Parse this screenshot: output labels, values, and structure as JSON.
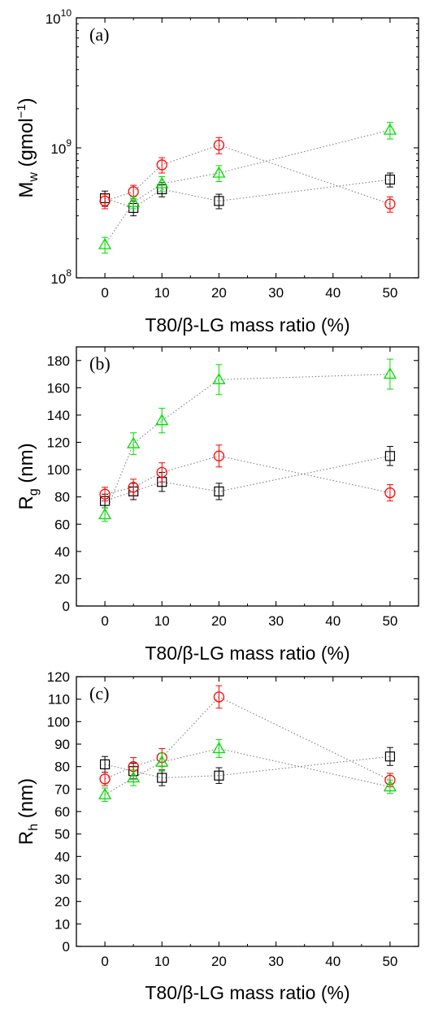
{
  "colors": {
    "square": "#000000",
    "circle": "#ff0000",
    "triangle": "#00dd00",
    "connector": "#808080"
  },
  "chart_data": [
    {
      "type": "scatter",
      "panel_label": "(a)",
      "xlabel": "T80/β-LG mass ratio (%)",
      "ylabel": {
        "main": "M",
        "sub": "w",
        "rest": " (gmol",
        "sup": "−1",
        "end": ")"
      },
      "yscale": "log",
      "xlim": [
        -5,
        55
      ],
      "ylim": [
        100000000,
        10000000000
      ],
      "xticks": [
        "0",
        "10",
        "20",
        "30",
        "40",
        "50"
      ],
      "yticks": [
        {
          "base": "10",
          "exp": "8",
          "value": 100000000
        },
        {
          "base": "10",
          "exp": "9",
          "value": 1000000000
        },
        {
          "base": "10",
          "exp": "10",
          "value": 10000000000
        }
      ],
      "x": [
        0,
        5,
        10,
        20,
        50
      ],
      "series": [
        {
          "marker": "square",
          "values": [
            410000000,
            345000000,
            480000000,
            390000000,
            570000000
          ],
          "errors": [
            55000000,
            45000000,
            60000000,
            50000000,
            70000000
          ]
        },
        {
          "marker": "circle",
          "values": [
            390000000,
            460000000,
            740000000,
            1050000000,
            370000000
          ],
          "errors": [
            50000000,
            55000000,
            100000000,
            150000000,
            50000000
          ]
        },
        {
          "marker": "triangle",
          "values": [
            180000000,
            380000000,
            530000000,
            640000000,
            1370000000
          ],
          "errors": [
            25000000,
            40000000,
            70000000,
            90000000,
            200000000
          ]
        }
      ]
    },
    {
      "type": "scatter",
      "panel_label": "(b)",
      "xlabel": "T80/β-LG mass ratio (%)",
      "ylabel": {
        "main": "R",
        "sub": "g",
        "rest": " (nm)"
      },
      "yscale": "linear",
      "xlim": [
        -5,
        55
      ],
      "ylim": [
        0,
        190
      ],
      "xticks": [
        "0",
        "10",
        "20",
        "30",
        "40",
        "50"
      ],
      "yticks": [
        "0",
        "20",
        "40",
        "60",
        "80",
        "100",
        "120",
        "140",
        "160",
        "180"
      ],
      "x": [
        0,
        5,
        10,
        20,
        50
      ],
      "series": [
        {
          "marker": "square",
          "values": [
            77,
            84,
            91,
            84,
            110
          ],
          "errors": [
            5,
            6,
            7,
            6,
            7
          ]
        },
        {
          "marker": "circle",
          "values": [
            82,
            87,
            98,
            110,
            83
          ],
          "errors": [
            5,
            6,
            7,
            8,
            6
          ]
        },
        {
          "marker": "triangle",
          "values": [
            67,
            119,
            136,
            166,
            170
          ],
          "errors": [
            5,
            8,
            9,
            11,
            11
          ]
        }
      ]
    },
    {
      "type": "scatter",
      "panel_label": "(c)",
      "xlabel": "T80/β-LG mass ratio (%)",
      "ylabel": {
        "main": "R",
        "sub": "h",
        "rest": " (nm)"
      },
      "yscale": "linear",
      "xlim": [
        -5,
        55
      ],
      "ylim": [
        0,
        120
      ],
      "xticks": [
        "0",
        "10",
        "20",
        "30",
        "40",
        "50"
      ],
      "yticks": [
        "0",
        "10",
        "20",
        "30",
        "40",
        "50",
        "60",
        "70",
        "80",
        "90",
        "100",
        "110",
        "120"
      ],
      "x": [
        0,
        5,
        10,
        20,
        50
      ],
      "series": [
        {
          "marker": "square",
          "values": [
            81,
            78,
            75,
            76,
            84.5
          ],
          "errors": [
            3.5,
            3.5,
            3.5,
            3.5,
            4
          ]
        },
        {
          "marker": "circle",
          "values": [
            74.5,
            80,
            84,
            111,
            74
          ],
          "errors": [
            3,
            4,
            4,
            5,
            3
          ]
        },
        {
          "marker": "triangle",
          "values": [
            67.5,
            75,
            82,
            88,
            71
          ],
          "errors": [
            3,
            3.5,
            4,
            4,
            3
          ]
        }
      ]
    }
  ]
}
